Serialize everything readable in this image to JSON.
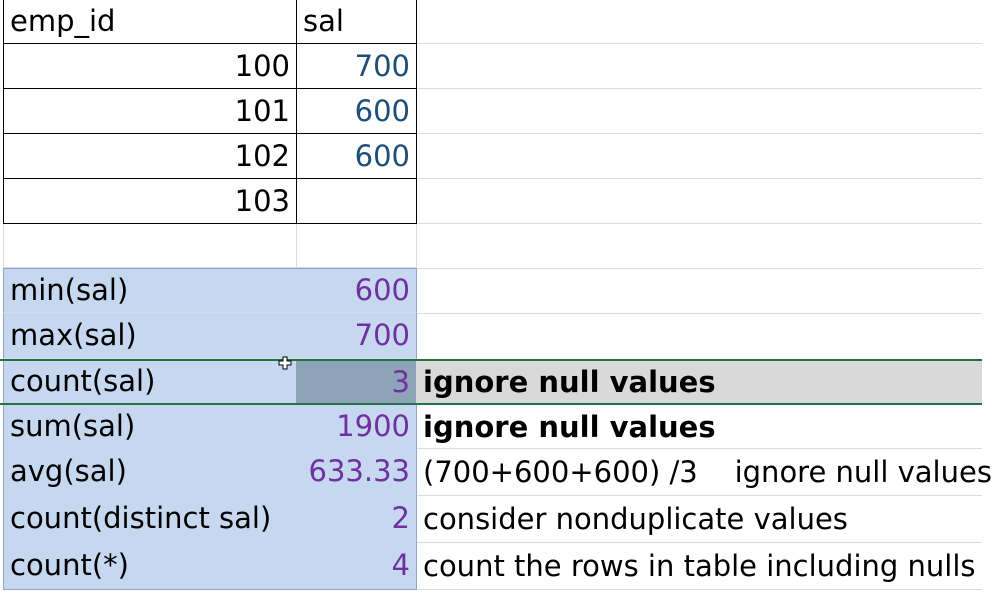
{
  "table": {
    "headers": [
      "emp_id",
      "sal"
    ],
    "rows": [
      {
        "emp_id": "100",
        "sal": "700"
      },
      {
        "emp_id": "101",
        "sal": "600"
      },
      {
        "emp_id": "102",
        "sal": "600"
      },
      {
        "emp_id": "103",
        "sal": ""
      }
    ]
  },
  "aggregates": [
    {
      "func": "min(sal)",
      "value": "600",
      "note": ""
    },
    {
      "func": "max(sal)",
      "value": "700",
      "note": ""
    },
    {
      "func": "count(sal)",
      "value": "3",
      "note": "ignore null values"
    },
    {
      "func": "sum(sal)",
      "value": "1900",
      "note": "ignore null values"
    },
    {
      "func": "avg(sal)",
      "value": "633.33",
      "note": "(700+600+600) /3    ignore null values"
    },
    {
      "func": "count(distinct sal)",
      "value": "2",
      "note": "consider nonduplicate values"
    },
    {
      "func": "count(*)",
      "value": "4",
      "note": "count the rows in table including nulls"
    }
  ],
  "colors": {
    "aggregate_fill": "#c6d8ef",
    "selected_fill": "#d9d9d9",
    "selected_value_fill": "#8ea2b8",
    "selection_border": "#217346",
    "salary_text": "#1f4e78",
    "aggregate_text": "#7030a0"
  },
  "icons": {
    "cursor": "cross-cursor-icon"
  }
}
